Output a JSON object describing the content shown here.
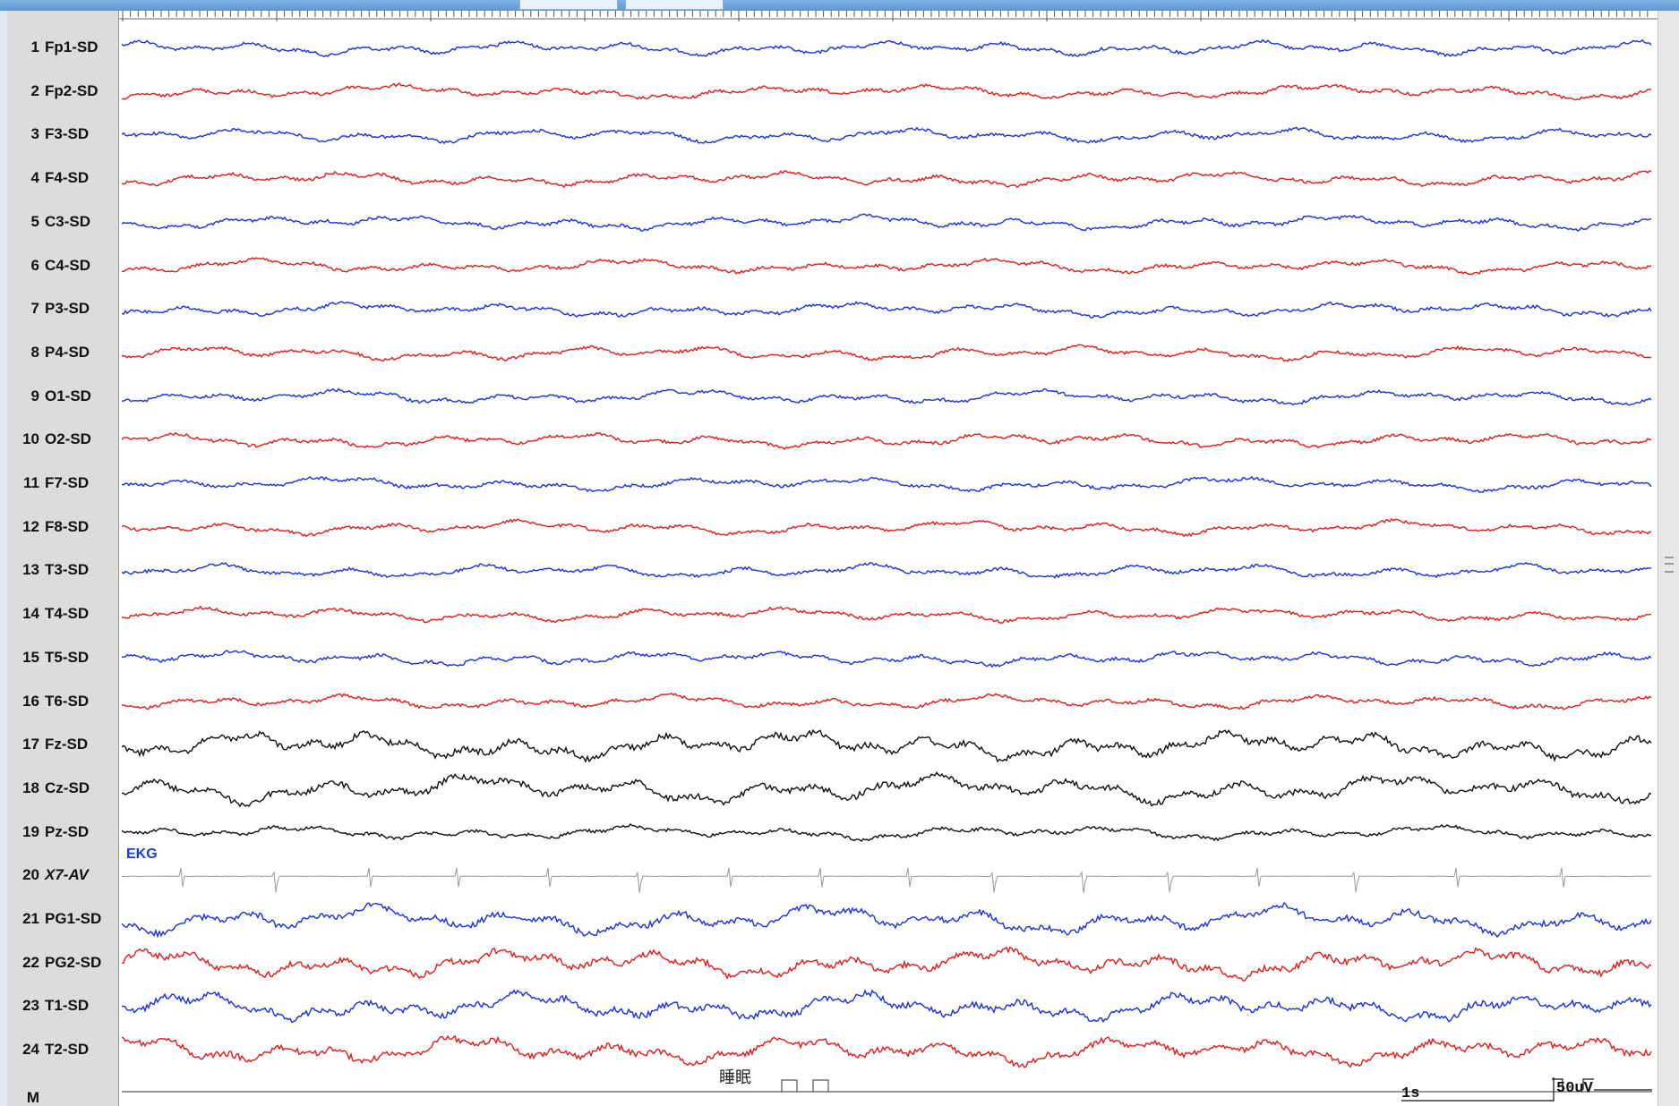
{
  "viewer": {
    "sleep_label": "睡眠",
    "time_scale": "1s",
    "amplitude_scale": "50uV",
    "ekg_tag": "EKG",
    "marker_row_label": "M"
  },
  "colors": {
    "blue": "#1a2ee6",
    "red": "#e61a1a",
    "black": "#111111",
    "gray": "#9a9a9a"
  },
  "channels": [
    {
      "num": "1",
      "name": "Fp1-SD",
      "color": "blue"
    },
    {
      "num": "2",
      "name": "Fp2-SD",
      "color": "red"
    },
    {
      "num": "3",
      "name": "F3-SD",
      "color": "blue"
    },
    {
      "num": "4",
      "name": "F4-SD",
      "color": "red"
    },
    {
      "num": "5",
      "name": "C3-SD",
      "color": "blue"
    },
    {
      "num": "6",
      "name": "C4-SD",
      "color": "red"
    },
    {
      "num": "7",
      "name": "P3-SD",
      "color": "blue"
    },
    {
      "num": "8",
      "name": "P4-SD",
      "color": "red"
    },
    {
      "num": "9",
      "name": "O1-SD",
      "color": "blue"
    },
    {
      "num": "10",
      "name": "O2-SD",
      "color": "red"
    },
    {
      "num": "11",
      "name": "F7-SD",
      "color": "blue"
    },
    {
      "num": "12",
      "name": "F8-SD",
      "color": "red"
    },
    {
      "num": "13",
      "name": "T3-SD",
      "color": "blue"
    },
    {
      "num": "14",
      "name": "T4-SD",
      "color": "red"
    },
    {
      "num": "15",
      "name": "T5-SD",
      "color": "blue"
    },
    {
      "num": "16",
      "name": "T6-SD",
      "color": "red"
    },
    {
      "num": "17",
      "name": "Fz-SD",
      "color": "black"
    },
    {
      "num": "18",
      "name": "Cz-SD",
      "color": "black"
    },
    {
      "num": "19",
      "name": "Pz-SD",
      "color": "black"
    },
    {
      "num": "20",
      "name": "X7-AV",
      "color": "gray"
    },
    {
      "num": "21",
      "name": "PG1-SD",
      "color": "blue"
    },
    {
      "num": "22",
      "name": "PG2-SD",
      "color": "red"
    },
    {
      "num": "23",
      "name": "T1-SD",
      "color": "blue"
    },
    {
      "num": "24",
      "name": "T2-SD",
      "color": "red"
    }
  ]
}
